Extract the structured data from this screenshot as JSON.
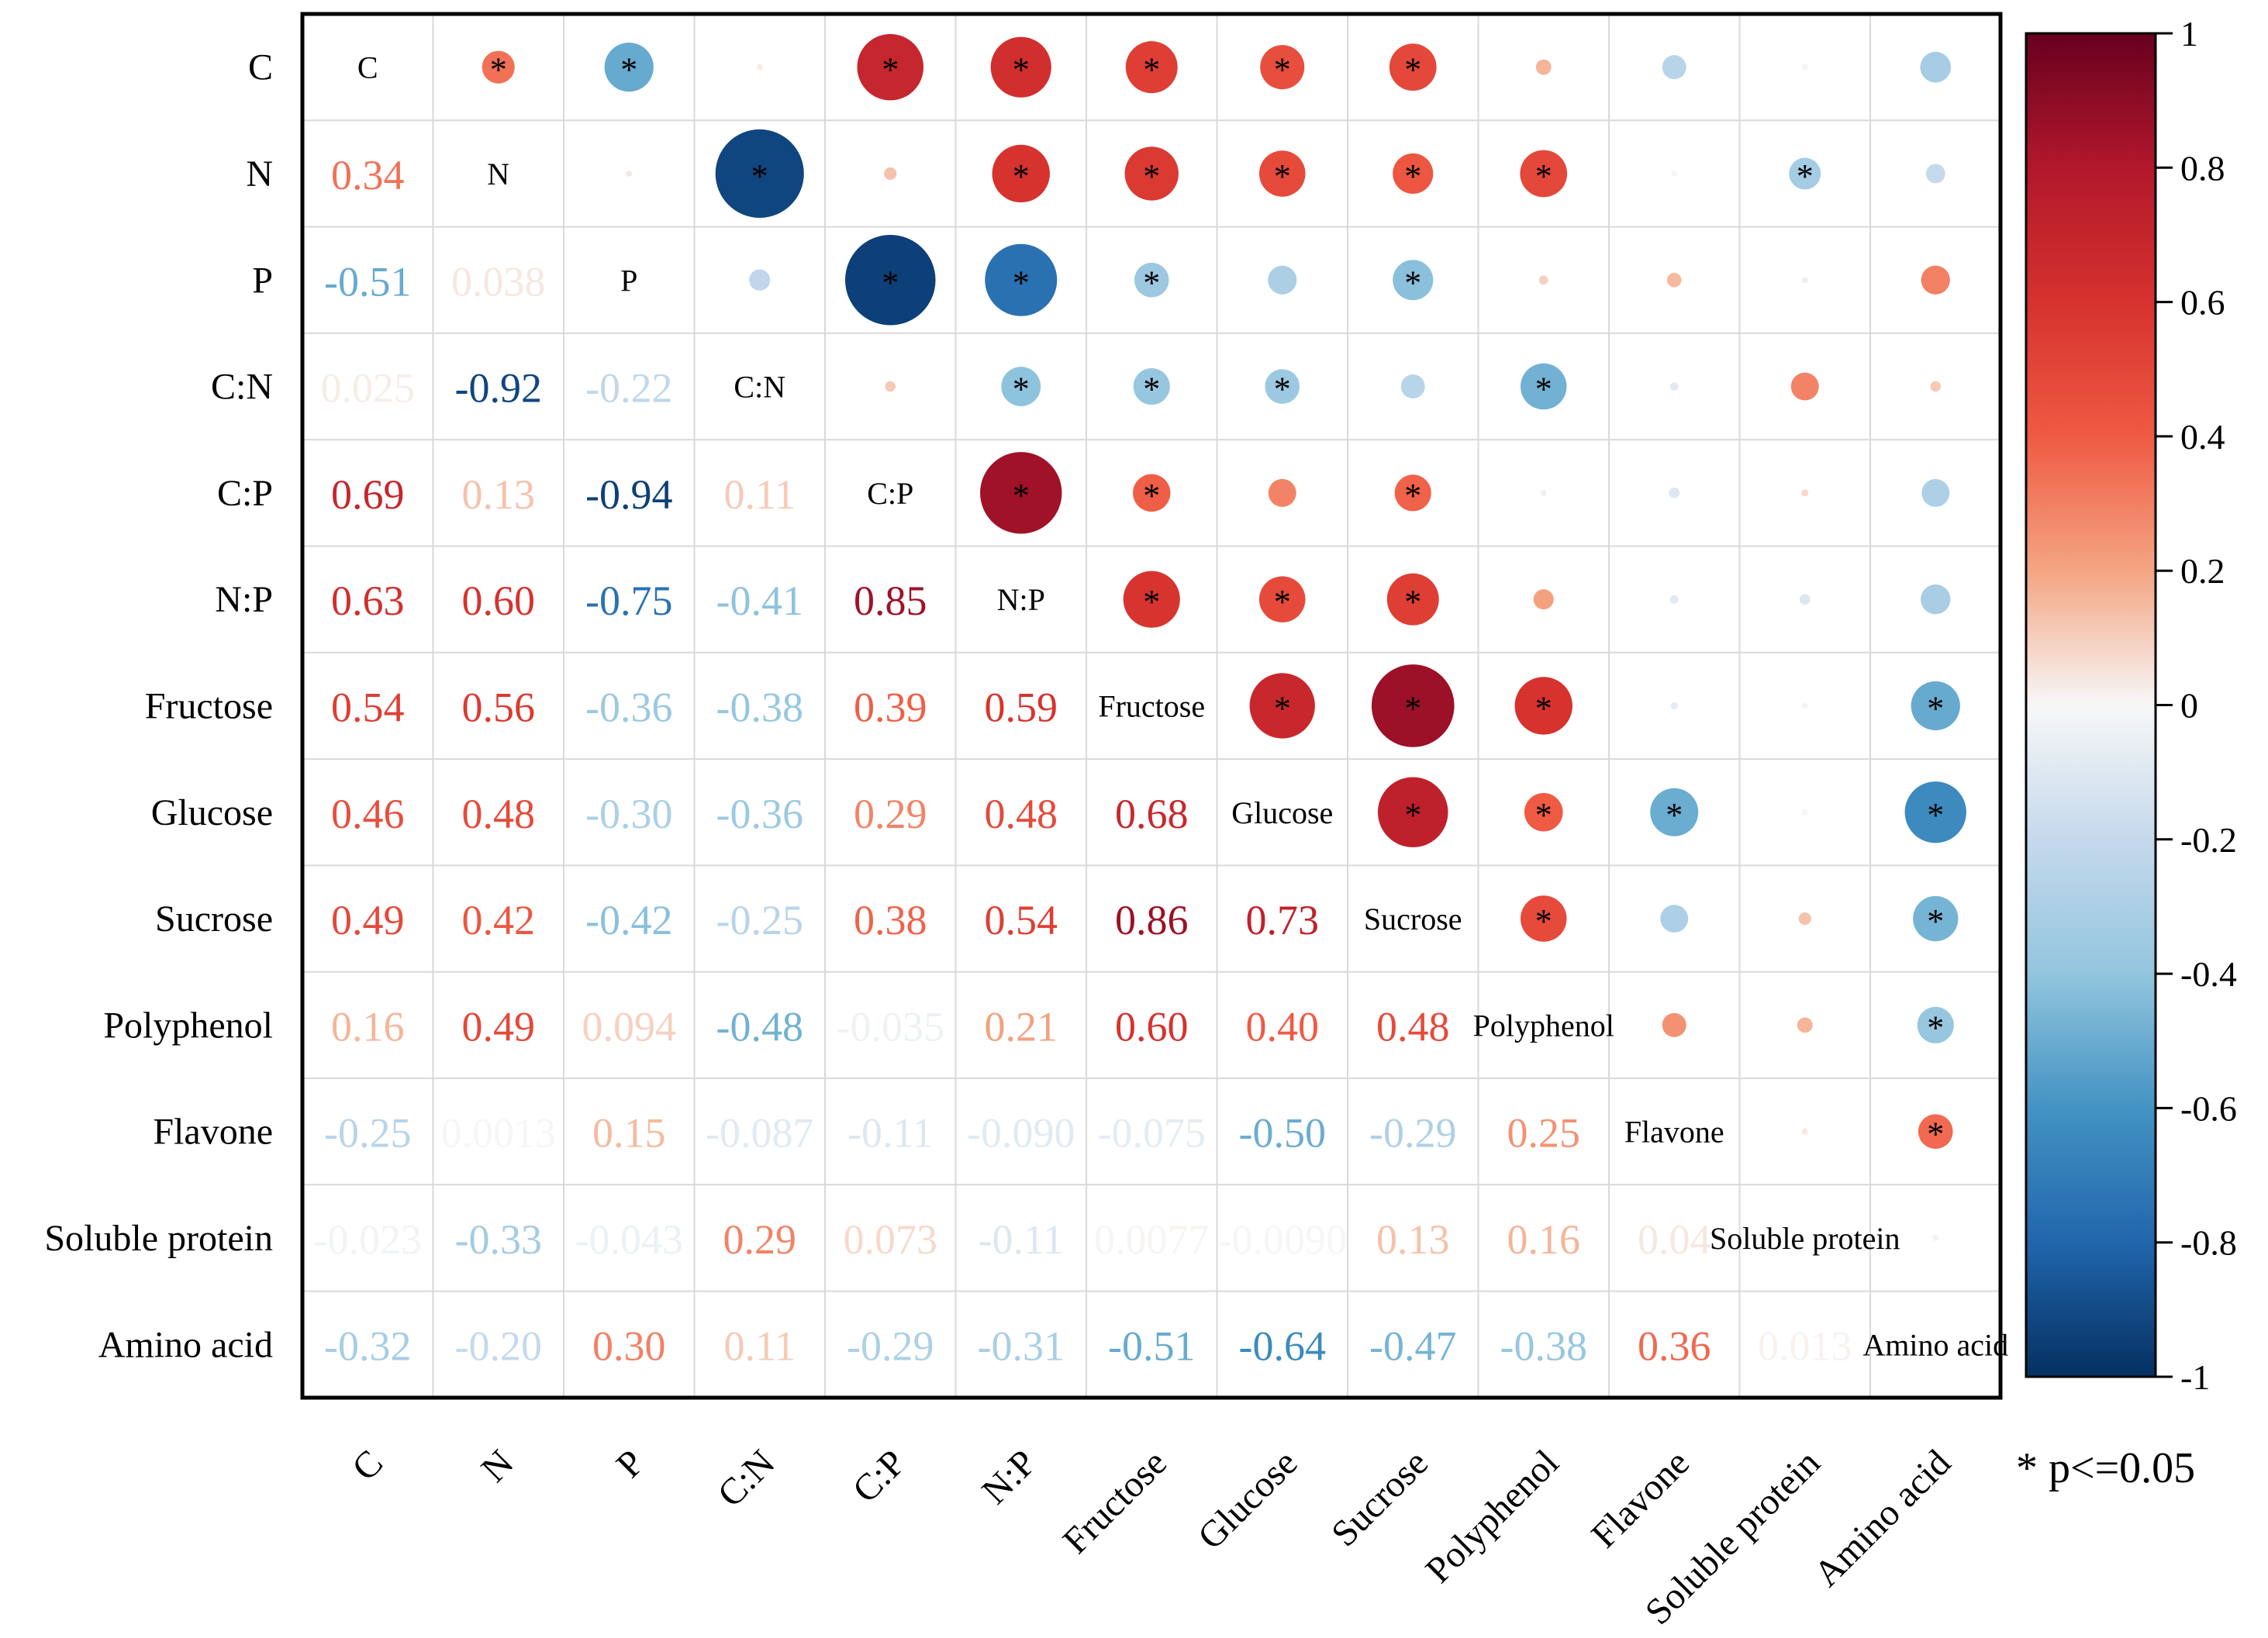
{
  "chart_data": {
    "type": "correlation-heatmap",
    "title": "",
    "variables": [
      "C",
      "N",
      "P",
      "C:N",
      "C:P",
      "N:P",
      "Fructose",
      "Glucose",
      "Sucrose",
      "Polyphenol",
      "Flavone",
      "Soluble protein",
      "Amino acid"
    ],
    "lower_labels": [
      [],
      [
        "0.34"
      ],
      [
        "-0.51",
        "0.038"
      ],
      [
        "0.025",
        "-0.92",
        "-0.22"
      ],
      [
        "0.69",
        "0.13",
        "-0.94",
        "0.11"
      ],
      [
        "0.63",
        "0.60",
        "-0.75",
        "-0.41",
        "0.85"
      ],
      [
        "0.54",
        "0.56",
        "-0.36",
        "-0.38",
        "0.39",
        "0.59"
      ],
      [
        "0.46",
        "0.48",
        "-0.30",
        "-0.36",
        "0.29",
        "0.48",
        "0.68"
      ],
      [
        "0.49",
        "0.42",
        "-0.42",
        "-0.25",
        "0.38",
        "0.54",
        "0.86",
        "0.73"
      ],
      [
        "0.16",
        "0.49",
        "0.094",
        "-0.48",
        "-0.035",
        "0.21",
        "0.60",
        "0.40",
        "0.48"
      ],
      [
        "-0.25",
        "0.0013",
        "0.15",
        "-0.087",
        "-0.11",
        "-0.090",
        "-0.075",
        "-0.50",
        "-0.29",
        "0.25"
      ],
      [
        "-0.023",
        "-0.33",
        "-0.043",
        "0.29",
        "0.073",
        "-0.11",
        "0.0077",
        "-0.0090",
        "0.13",
        "0.16",
        "0.04"
      ],
      [
        "-0.32",
        "-0.20",
        "0.30",
        "0.11",
        "-0.29",
        "-0.31",
        "-0.51",
        "-0.64",
        "-0.47",
        "-0.38",
        "0.36",
        "0.013"
      ]
    ],
    "significance": [
      [
        0,
        1,
        1,
        0,
        1,
        1,
        1,
        1,
        1,
        0,
        0,
        0,
        0
      ],
      [
        1,
        0,
        0,
        1,
        0,
        1,
        1,
        1,
        1,
        1,
        0,
        1,
        0
      ],
      [
        1,
        0,
        0,
        0,
        1,
        1,
        1,
        0,
        1,
        0,
        0,
        0,
        0
      ],
      [
        0,
        1,
        0,
        0,
        0,
        1,
        1,
        1,
        0,
        1,
        0,
        0,
        0
      ],
      [
        1,
        0,
        1,
        0,
        0,
        1,
        1,
        0,
        1,
        0,
        0,
        0,
        0
      ],
      [
        1,
        1,
        1,
        1,
        1,
        0,
        1,
        1,
        1,
        0,
        0,
        0,
        0
      ],
      [
        1,
        1,
        1,
        1,
        1,
        1,
        0,
        1,
        1,
        1,
        0,
        0,
        1
      ],
      [
        1,
        1,
        0,
        1,
        0,
        1,
        1,
        0,
        1,
        1,
        1,
        0,
        1
      ],
      [
        1,
        1,
        1,
        0,
        1,
        1,
        1,
        1,
        0,
        1,
        0,
        0,
        1
      ],
      [
        0,
        1,
        0,
        1,
        0,
        0,
        1,
        1,
        1,
        0,
        0,
        0,
        1
      ],
      [
        0,
        0,
        0,
        0,
        0,
        0,
        0,
        1,
        0,
        0,
        0,
        0,
        1
      ],
      [
        0,
        1,
        0,
        0,
        0,
        0,
        0,
        0,
        0,
        0,
        0,
        0,
        0
      ],
      [
        0,
        0,
        0,
        0,
        0,
        0,
        1,
        1,
        1,
        1,
        1,
        0,
        0
      ]
    ],
    "colorbar": {
      "range": [
        -1,
        1
      ],
      "ticks": [
        "1",
        "0.8",
        "0.6",
        "0.4",
        "0.2",
        "0",
        "-0.2",
        "-0.4",
        "-0.6",
        "-0.8",
        "-1"
      ]
    },
    "legend_note": "* p<=0.05",
    "colors": {
      "negative_strong": "#0b3b86",
      "neutral": "#f7f7f7",
      "positive_strong": "#7a0b1a"
    }
  }
}
